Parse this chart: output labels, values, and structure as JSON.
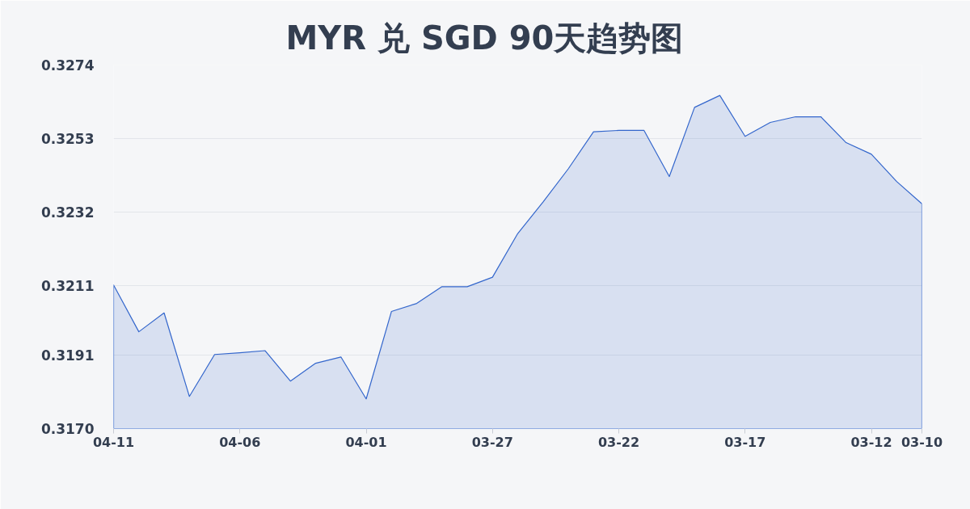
{
  "chart_data": {
    "type": "area",
    "title": "MYR 兑 SGD 90天趋势图",
    "categories": [
      "04-11",
      null,
      null,
      null,
      null,
      "04-06",
      null,
      null,
      null,
      null,
      "04-01",
      null,
      null,
      null,
      null,
      "03-27",
      null,
      null,
      null,
      null,
      "03-22",
      null,
      null,
      null,
      null,
      "03-17",
      null,
      null,
      null,
      null,
      "03-12",
      null,
      "03-10"
    ],
    "series": [
      {
        "color": "#3366cc",
        "values": [
          0.32111,
          0.31977,
          0.32031,
          0.31792,
          0.31912,
          0.31917,
          0.31923,
          0.31836,
          0.31887,
          0.31905,
          0.31785,
          0.32035,
          0.32058,
          0.32106,
          0.32106,
          0.32133,
          0.32258,
          0.32348,
          0.32443,
          0.32549,
          0.32553,
          0.32553,
          0.32421,
          0.32619,
          0.32653,
          0.32536,
          0.32576,
          0.32592,
          0.32592,
          0.32518,
          0.32485,
          0.32407,
          0.32343
        ]
      }
    ],
    "ylim": [
      0.317,
      0.3274
    ],
    "yticks": [
      {
        "value": 0.317,
        "label": "0.3170"
      },
      0.3191,
      0.3211,
      0.3232,
      0.3253,
      0.3274
    ],
    "grid": "y"
  }
}
